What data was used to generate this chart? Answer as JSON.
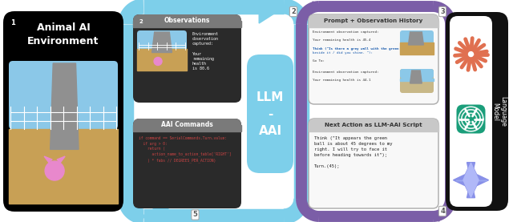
{
  "box1_title": "Animal AI\nEnvironment",
  "box1_num": "1",
  "box2_title": "Observations",
  "box2_num": "2",
  "box2_text": "Environment\nobservation\ncaptured:\n\nYour\nremaining\nhealth\nis 80.6",
  "box3_title": "Prompt + Observation History",
  "box3_num": "3",
  "box4_title": "Next Action as LLM-AAI Script",
  "box4_num": "4",
  "box4_text": "Think (\"It appears the green\nball is about 45 degrees to my\nright. I will try to face it\nbefore heading towards it\");\n\nTurn.(45);",
  "box5_title": "AAI Commands",
  "box5_num": "5",
  "box5_text": "if command == SerialCommands.Turn.value:\n  if arg > 0:\n    return (\n      action_name_to_action_table['RIGHT']\n    ) * fabs // DEGREES_PER_ACTION)",
  "center_text": "LLM\n-\nAAI",
  "lang_model_title": "Language\nModel",
  "bg_color": "#ffffff",
  "box1_bg": "#000000",
  "box2_header_bg": "#7a7a7a",
  "box2_body_bg": "#2a2a2a",
  "box5_header_bg": "#7a7a7a",
  "box5_body_bg": "#2a2a2a",
  "box3_bg": "#f8f8f8",
  "box3_border": "#aaaaaa",
  "box4_bg": "#f8f8f8",
  "box4_border": "#aaaaaa",
  "lang_model_bg": "#111111",
  "lang_model_icons_bg": "#ffffff",
  "center_bg_top": "#7dcfea",
  "center_bg_bot": "#7dcfea",
  "arrow_blue": "#7dcfea",
  "arrow_purple": "#7b5ea7",
  "icon_anthropic": "#e07050",
  "icon_openai_bg": "#1a9e7a",
  "icon_gemini_top": "#8890e8",
  "icon_gemini_bot": "#9ba8f0",
  "code_color": "#cc4444",
  "box3_text_color": "#222222",
  "box4_text_color": "#222222"
}
